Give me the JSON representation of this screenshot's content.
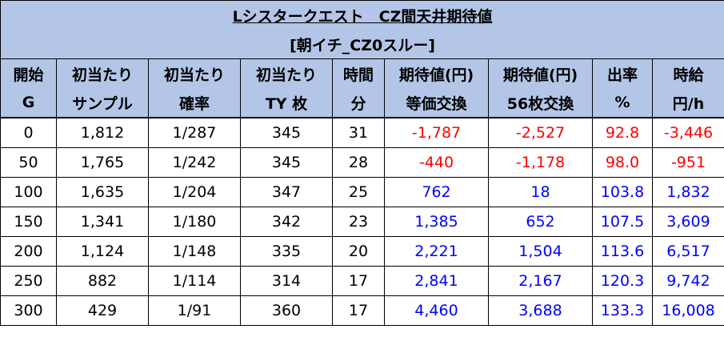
{
  "title": "Lシスタークエスト　CZ間天井期待値",
  "subtitle": "[朝イチ_CZ0スルー]",
  "headers": [
    [
      "開始",
      "G"
    ],
    [
      "初当たり",
      "サンプル"
    ],
    [
      "初当たり",
      "確率"
    ],
    [
      "初当たり",
      "TY 枚"
    ],
    [
      "時間",
      "分"
    ],
    [
      "期待値(円)",
      "等価交換"
    ],
    [
      "期待値(円)",
      "56枚交換"
    ],
    [
      "出率",
      "%"
    ],
    [
      "時給",
      "円/h"
    ]
  ],
  "rows": [
    [
      "0",
      "1,812",
      "1/287",
      "345",
      "31",
      "-1,787",
      "-2,527",
      "92.8",
      "-3,446"
    ],
    [
      "50",
      "1,765",
      "1/242",
      "345",
      "28",
      "-440",
      "-1,178",
      "98.0",
      "-951"
    ],
    [
      "100",
      "1,635",
      "1/204",
      "347",
      "25",
      "762",
      "18",
      "103.8",
      "1,832"
    ],
    [
      "150",
      "1,341",
      "1/180",
      "342",
      "23",
      "1,385",
      "652",
      "107.5",
      "3,609"
    ],
    [
      "200",
      "1,124",
      "1/148",
      "335",
      "20",
      "2,221",
      "1,504",
      "113.6",
      "6,517"
    ],
    [
      "250",
      "882",
      "1/114",
      "314",
      "17",
      "2,841",
      "2,167",
      "120.3",
      "9,742"
    ],
    [
      "300",
      "429",
      "1/91",
      "360",
      "17",
      "4,460",
      "3,688",
      "133.3",
      "16,008"
    ]
  ],
  "colors": {
    "header_bg": "#b4c6e7",
    "negative": "#ff0000",
    "positive": "#0000ff",
    "border": "#000000"
  }
}
